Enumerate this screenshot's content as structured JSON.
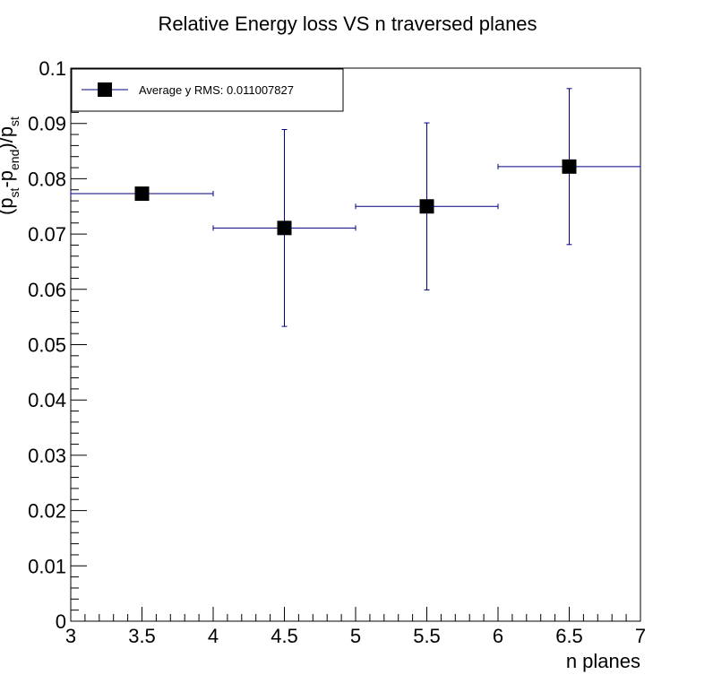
{
  "chart_data": {
    "type": "scatter",
    "title": "Relative Energy loss VS n traversed planes",
    "xlabel": "n planes",
    "ylabel": {
      "p1": "(p",
      "p1_sub": "st",
      "p2": "-p",
      "p2_sub": "end",
      "p3": ")/p",
      "p3_sub": "st"
    },
    "xlim": [
      3,
      7
    ],
    "ylim": [
      0,
      0.1
    ],
    "x_ticks": [
      "3",
      "3.5",
      "4",
      "4.5",
      "5",
      "5.5",
      "6",
      "6.5",
      "7"
    ],
    "y_ticks": [
      "0",
      "0.01",
      "0.02",
      "0.03",
      "0.04",
      "0.05",
      "0.06",
      "0.07",
      "0.08",
      "0.09",
      "0.1"
    ],
    "grid": false,
    "legend_position": "top-left",
    "series": [
      {
        "name": "Average y RMS: 0.011007827",
        "marker": "square",
        "marker_color": "#000000",
        "errorbar_color": "#000080",
        "points": [
          {
            "x": 3.5,
            "y": 0.0773,
            "xerr": 0.5,
            "yerr": 0.0
          },
          {
            "x": 4.5,
            "y": 0.0711,
            "xerr": 0.5,
            "yerr": 0.0178
          },
          {
            "x": 5.5,
            "y": 0.075,
            "xerr": 0.5,
            "yerr": 0.0151
          },
          {
            "x": 6.5,
            "y": 0.0822,
            "xerr": 0.5,
            "yerr": 0.0141
          }
        ]
      }
    ]
  }
}
